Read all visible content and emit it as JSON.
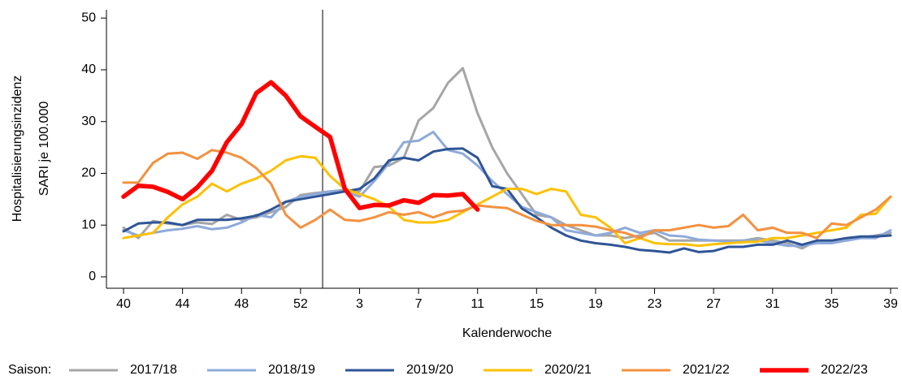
{
  "chart_data": {
    "type": "line",
    "y_label": [
      "Hospitalisierungsinzidenz",
      "SARI je 100.000"
    ],
    "x_label": "Kalenderwoche",
    "legend_title": "Saison:",
    "legend": "bottom",
    "categories": [
      "40",
      null,
      null,
      null,
      "44",
      null,
      null,
      null,
      "48",
      null,
      null,
      null,
      "52",
      null,
      null,
      null,
      "3",
      null,
      null,
      null,
      "7",
      null,
      null,
      null,
      "11",
      null,
      null,
      null,
      "15",
      null,
      null,
      null,
      "19",
      null,
      null,
      null,
      "23",
      null,
      null,
      null,
      "27",
      null,
      null,
      null,
      "31",
      null,
      null,
      null,
      "35",
      null,
      null,
      null,
      "39"
    ],
    "ylim": [
      -2.2,
      51.6
    ],
    "yticks": [
      0,
      10,
      20,
      30,
      40,
      50
    ],
    "series": [
      {
        "name": "2017/18",
        "color": "#a6a6a6",
        "values": [
          9.5,
          7.5,
          10.8,
          10.3,
          10,
          10.5,
          10.2,
          12,
          11,
          11.5,
          12.5,
          13.5,
          15.8,
          16.2,
          16.5,
          16.8,
          16.5,
          21.2,
          21.5,
          23,
          30.2,
          32.6,
          37.5,
          40.3,
          31.6,
          25,
          20,
          16,
          12,
          11.5,
          10,
          9,
          8,
          8,
          7.5,
          8,
          8.5,
          7,
          7,
          7,
          7,
          7,
          7,
          7.5,
          7,
          6.5,
          5.5,
          7,
          7,
          7,
          7.5,
          8,
          8.5
        ]
      },
      {
        "name": "2018/19",
        "color": "#8eaadb",
        "values": [
          9,
          8,
          8.5,
          9,
          9.3,
          9.8,
          9.2,
          9.5,
          10.5,
          12,
          11.5,
          14.5,
          15.5,
          16,
          16.5,
          16.5,
          15.5,
          18.5,
          22,
          26,
          26.3,
          28,
          24.5,
          23.8,
          21.5,
          18.5,
          16,
          13.5,
          12.5,
          11.5,
          9,
          8.5,
          8,
          8.5,
          9.5,
          8.5,
          9,
          8,
          7.8,
          7.2,
          7,
          6.8,
          7,
          7,
          6.5,
          6,
          6,
          6.5,
          6.5,
          7,
          7.5,
          7.5,
          9
        ]
      },
      {
        "name": "2019/20",
        "color": "#2f5597",
        "values": [
          8.8,
          10.3,
          10.5,
          10.5,
          10,
          11,
          11,
          11,
          11.3,
          11.8,
          13,
          14.5,
          15,
          15.5,
          16,
          16.5,
          17,
          19,
          22.5,
          23,
          22.5,
          24.2,
          24.7,
          24.8,
          23,
          17.5,
          17,
          13.2,
          11.5,
          9.5,
          8,
          7,
          6.5,
          6.2,
          5.8,
          5.2,
          5,
          4.7,
          5.5,
          4.8,
          5,
          5.8,
          5.8,
          6.2,
          6.2,
          7,
          6.2,
          7,
          7,
          7.5,
          7.8,
          7.8,
          8
        ]
      },
      {
        "name": "2020/21",
        "color": "#ffc000",
        "values": [
          7.5,
          8,
          8.5,
          11.5,
          14,
          15.5,
          18,
          16.5,
          18,
          19,
          20.5,
          22.5,
          23.3,
          23,
          19.5,
          17,
          16,
          15,
          13.5,
          11,
          10.5,
          10.5,
          11,
          12.5,
          14,
          15.5,
          17,
          17,
          16,
          17,
          16.5,
          12,
          11.5,
          9.5,
          6.5,
          7.5,
          6.5,
          6.3,
          6.3,
          6,
          6.3,
          6.5,
          6.7,
          6.8,
          7.5,
          7.5,
          8,
          8.5,
          9,
          9.5,
          12,
          12.2,
          15.5
        ]
      },
      {
        "name": "2021/22",
        "color": "#f4913f",
        "values": [
          18.2,
          18.2,
          22,
          23.8,
          24,
          22.8,
          24.5,
          24,
          23,
          21,
          18,
          12,
          9.5,
          11,
          13,
          11,
          10.8,
          11.5,
          12.5,
          12,
          12.5,
          11.5,
          12.5,
          12.8,
          13.8,
          13.5,
          13.3,
          12,
          10.8,
          10,
          10,
          10,
          9.7,
          9,
          8.5,
          7.5,
          9,
          9,
          9.5,
          10,
          9.5,
          9.8,
          12,
          9,
          9.5,
          8.5,
          8.5,
          7.5,
          10.3,
          10,
          11.5,
          13,
          15.5
        ]
      },
      {
        "name": "2022/23",
        "color": "#ff0000",
        "values": [
          15.5,
          17.6,
          17.4,
          16.4,
          15,
          17.3,
          20.5,
          26,
          29.5,
          35.5,
          37.6,
          35,
          31,
          29,
          27,
          17,
          13.3,
          13.9,
          13.8,
          14.8,
          14.3,
          15.8,
          15.7,
          16,
          13,
          null,
          null,
          null,
          null,
          null,
          null,
          null,
          null,
          null,
          null,
          null,
          null,
          null,
          null,
          null,
          null,
          null,
          null,
          null,
          null,
          null,
          null,
          null,
          null,
          null,
          null,
          null,
          null
        ]
      }
    ]
  }
}
